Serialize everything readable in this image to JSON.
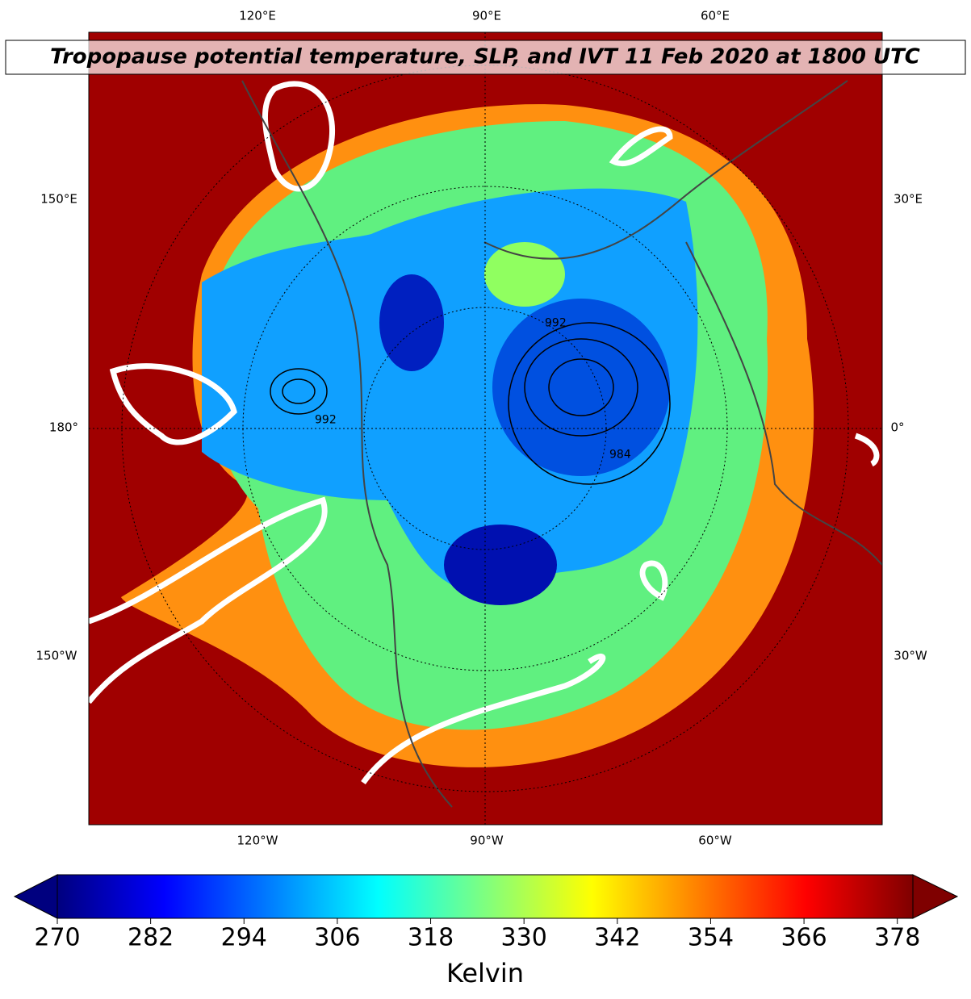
{
  "title": "Tropopause potential temperature, SLP, and IVT 11 Feb 2020 at 1800 UTC",
  "lon_labels": {
    "top": [
      "120°E",
      "90°E",
      "60°E"
    ],
    "left": [
      "150°E",
      "180°",
      "150°W"
    ],
    "right": [
      "30°E",
      "0°",
      "30°W"
    ],
    "bottom": [
      "120°W",
      "90°W",
      "60°W"
    ]
  },
  "contour_labels": [
    "992",
    "992",
    "984"
  ],
  "colorbar": {
    "label": "Kelvin",
    "range": [
      270,
      380
    ],
    "ticks": [
      270,
      282,
      294,
      306,
      318,
      330,
      342,
      354,
      366,
      378
    ],
    "colors": [
      "#00007f",
      "#0000ff",
      "#007fff",
      "#00ffff",
      "#7fff7f",
      "#ffff00",
      "#ff7f00",
      "#ff0000",
      "#7f0000"
    ]
  }
}
